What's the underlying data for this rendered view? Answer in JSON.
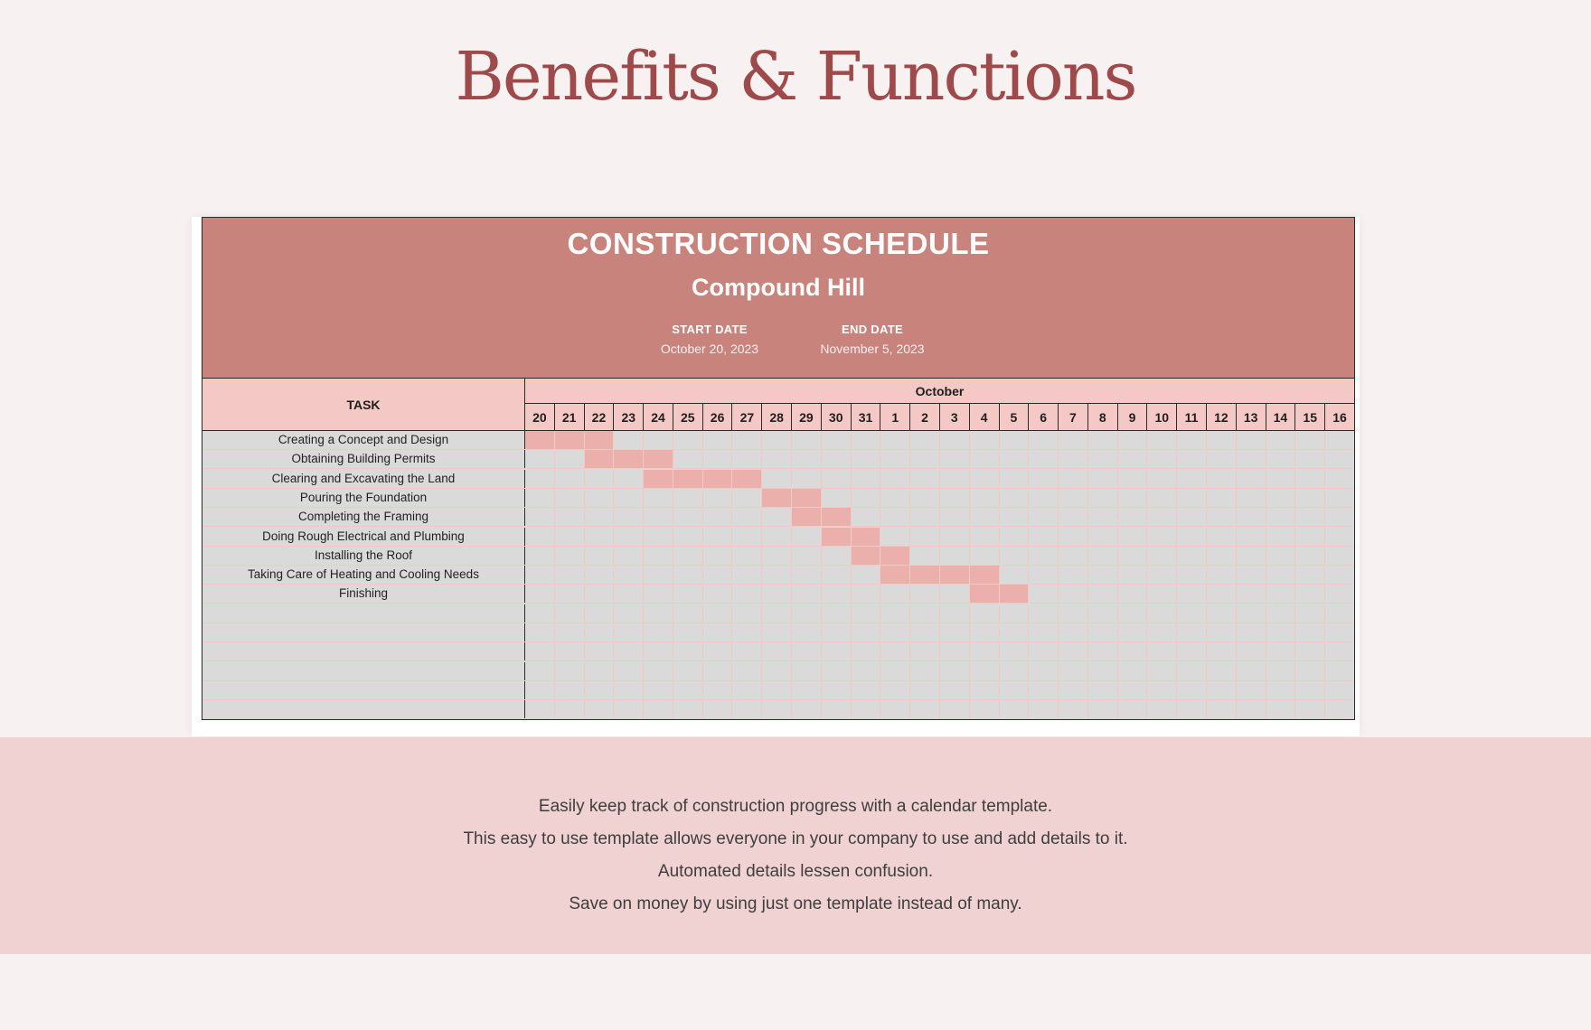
{
  "page": {
    "title": "Benefits & Functions"
  },
  "schedule": {
    "title": "CONSTRUCTION SCHEDULE",
    "project": "Compound Hill",
    "start_label": "START DATE",
    "start_value": "October 20, 2023",
    "end_label": "END DATE",
    "end_value": "November 5, 2023",
    "task_header": "TASK",
    "month": "October",
    "days": [
      "20",
      "21",
      "22",
      "23",
      "24",
      "25",
      "26",
      "27",
      "28",
      "29",
      "30",
      "31",
      "1",
      "2",
      "3",
      "4",
      "5",
      "6",
      "7",
      "8",
      "9",
      "10",
      "11",
      "12",
      "13",
      "14",
      "15",
      "16"
    ],
    "tasks": [
      {
        "name": "Creating a Concept and Design",
        "start": 0,
        "length": 3
      },
      {
        "name": "Obtaining Building Permits",
        "start": 2,
        "length": 3
      },
      {
        "name": "Clearing and Excavating the Land",
        "start": 4,
        "length": 4
      },
      {
        "name": "Pouring the Foundation",
        "start": 8,
        "length": 2
      },
      {
        "name": "Completing the Framing",
        "start": 9,
        "length": 2
      },
      {
        "name": "Doing Rough Electrical and Plumbing",
        "start": 10,
        "length": 2
      },
      {
        "name": "Installing the Roof",
        "start": 11,
        "length": 2
      },
      {
        "name": "Taking Care of Heating and Cooling Needs",
        "start": 12,
        "length": 4
      },
      {
        "name": "Finishing",
        "start": 15,
        "length": 2
      }
    ],
    "empty_rows": 6,
    "bar_color": "#ebb0ac"
  },
  "benefits": [
    "Easily keep track of construction progress with a calendar template.",
    "This easy to use template allows everyone in your company to use and add details to it.",
    "Automated details lessen confusion.",
    "Save on money by using just one template instead of many."
  ]
}
